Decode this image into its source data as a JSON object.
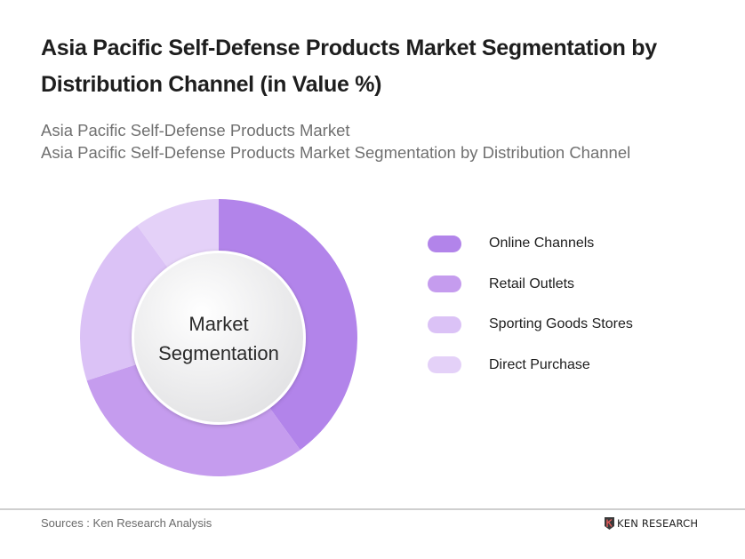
{
  "header": {
    "title": "Asia Pacific Self-Defense Products Market Segmentation by Distribution Channel (in Value %)",
    "subtitle_line1": "Asia Pacific Self-Defense Products Market",
    "subtitle_line2": "Asia Pacific Self-Defense Products Market Segmentation by Distribution Channel"
  },
  "center_label": {
    "line1": "Market",
    "line2": "Segmentation"
  },
  "legend": [
    {
      "label": "Online Channels",
      "color": "#b284ea"
    },
    {
      "label": "Retail Outlets",
      "color": "#c59cee"
    },
    {
      "label": "Sporting Goods Stores",
      "color": "#dbc2f6"
    },
    {
      "label": "Direct Purchase",
      "color": "#e4d1f8"
    }
  ],
  "footer": {
    "source": "Sources : Ken Research Analysis",
    "brand": "KEN RESEARCH"
  },
  "chart_data": {
    "type": "pie",
    "subtype": "donut",
    "title": "Asia Pacific Self-Defense Products Market Segmentation by Distribution Channel (in Value %)",
    "categories": [
      "Online Channels",
      "Retail Outlets",
      "Sporting Goods Stores",
      "Direct Purchase"
    ],
    "values": [
      40,
      30,
      20,
      10
    ],
    "colors": [
      "#b284ea",
      "#c59cee",
      "#dbc2f6",
      "#e4d1f8"
    ],
    "center_text": "Market Segmentation",
    "legend_position": "right",
    "start_angle": "top, clockwise"
  }
}
